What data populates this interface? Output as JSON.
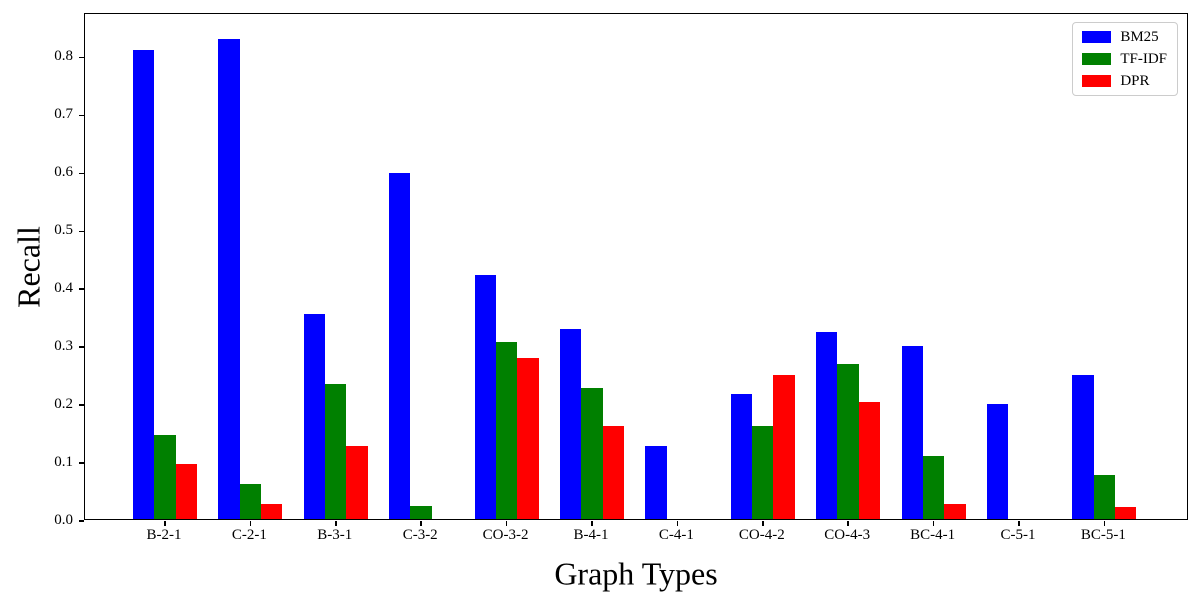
{
  "figure": {
    "background": "#ffffff",
    "text_color": "#000000"
  },
  "chart_data": {
    "type": "bar",
    "title": "",
    "xlabel": "Graph Types",
    "ylabel": "Recall",
    "ylim": [
      0,
      0.875
    ],
    "yticks": [
      "0.0",
      "0.1",
      "0.2",
      "0.3",
      "0.4",
      "0.5",
      "0.6",
      "0.7",
      "0.8"
    ],
    "grid": false,
    "legend_position": "upper right",
    "categories": [
      "B-2-1",
      "C-2-1",
      "B-3-1",
      "C-3-2",
      "CO-3-2",
      "B-4-1",
      "C-4-1",
      "CO-4-2",
      "CO-4-3",
      "BC-4-1",
      "C-5-1",
      "BC-5-1"
    ],
    "series": [
      {
        "name": "BM25",
        "color": "#0000FF",
        "values": [
          0.812,
          0.832,
          0.356,
          0.6,
          0.423,
          0.33,
          0.126,
          0.216,
          0.324,
          0.3,
          0.2,
          0.25
        ]
      },
      {
        "name": "TF-IDF",
        "color": "#008000",
        "values": [
          0.145,
          0.06,
          0.234,
          0.022,
          0.307,
          0.227,
          0.0,
          0.162,
          0.269,
          0.109,
          0.0,
          0.076
        ]
      },
      {
        "name": "DPR",
        "color": "#FF0000",
        "values": [
          0.095,
          0.026,
          0.126,
          0.0,
          0.279,
          0.162,
          0.0,
          0.25,
          0.202,
          0.026,
          0.0,
          0.02
        ]
      }
    ]
  }
}
